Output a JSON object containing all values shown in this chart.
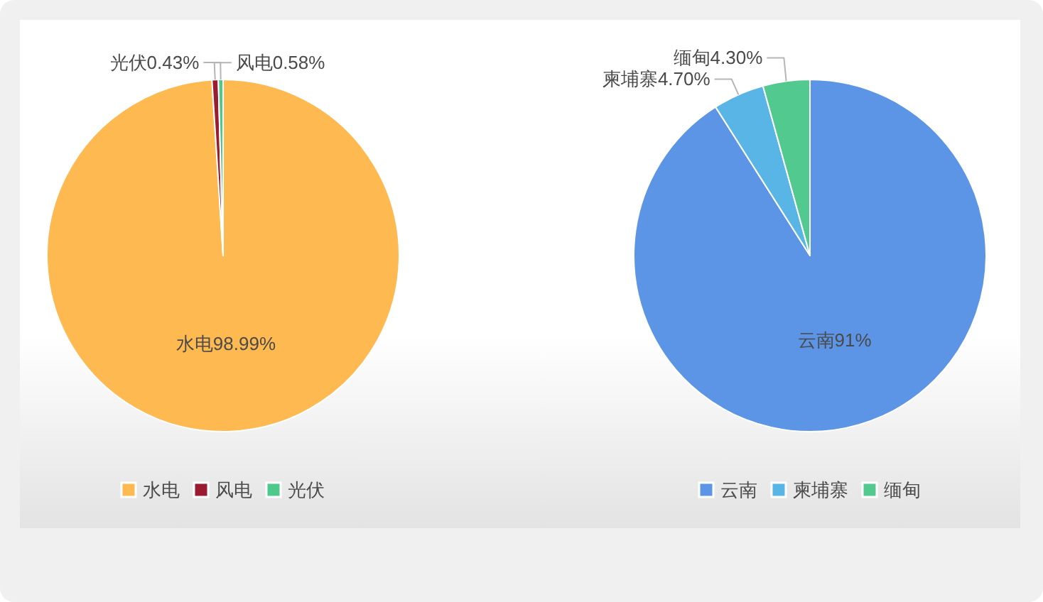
{
  "chart_data": [
    {
      "type": "pie",
      "categories": [
        "水电",
        "风电",
        "光伏"
      ],
      "values": [
        98.99,
        0.58,
        0.43
      ],
      "colors": [
        "#ffb951",
        "#9b1b30",
        "#4cc98b"
      ],
      "value_labels": [
        "98.99%",
        "0.58%",
        "0.43%"
      ],
      "legend": "bottom"
    },
    {
      "type": "pie",
      "categories": [
        "云南",
        "柬埔寨",
        "缅甸"
      ],
      "values": [
        91,
        4.7,
        4.3
      ],
      "colors": [
        "#5d95e6",
        "#58b5e6",
        "#52c98f"
      ],
      "value_labels": [
        "91%",
        "4.70%",
        "4.30%"
      ],
      "legend": "bottom"
    }
  ]
}
